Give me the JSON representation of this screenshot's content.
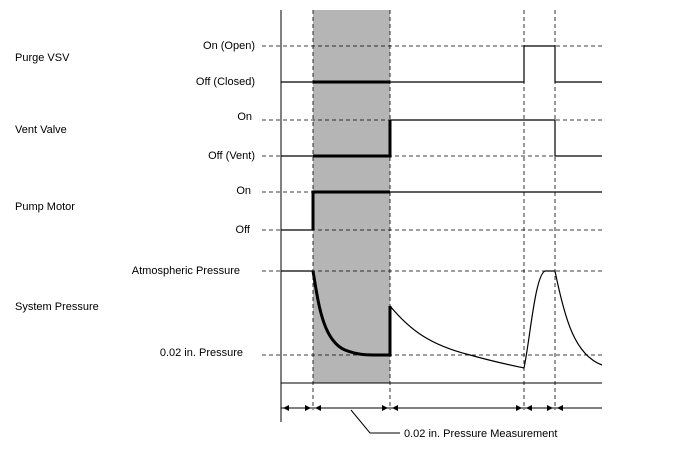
{
  "signals": {
    "purge_vsv": {
      "name": "Purge VSV",
      "high": "On (Open)",
      "low": "Off (Closed)"
    },
    "vent_valve": {
      "name": "Vent Valve",
      "high": "On",
      "low": "Off (Vent)"
    },
    "pump_motor": {
      "name": "Pump Motor",
      "high": "On",
      "low": "Off"
    },
    "system_pressure": {
      "name": "System Pressure",
      "high": "Atmospheric Pressure",
      "low": "0.02 in. Pressure"
    }
  },
  "callout": {
    "label": "0.02 in. Pressure Measurement"
  },
  "colors": {
    "shade": "#b5b5b5",
    "line": "#000000"
  }
}
